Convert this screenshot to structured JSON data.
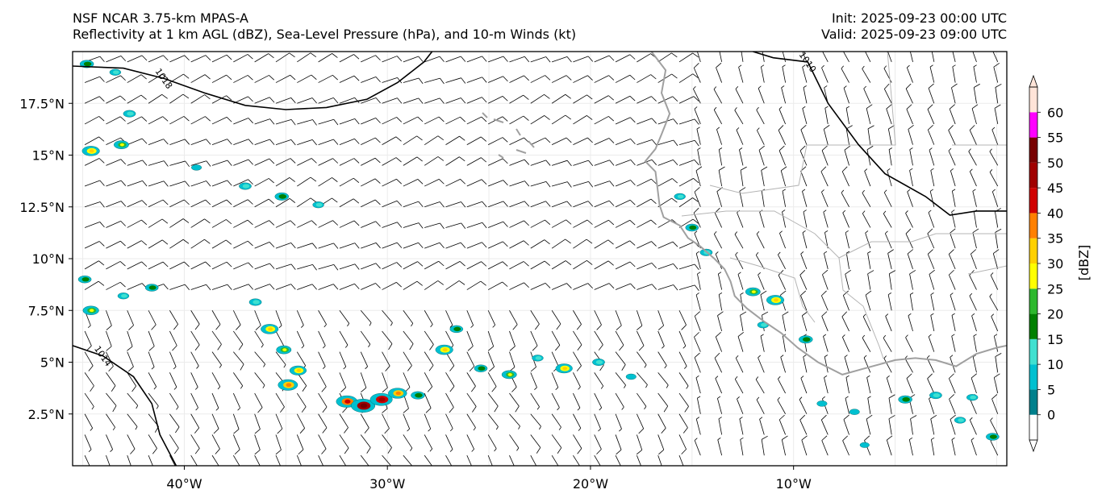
{
  "header": {
    "left_line1": "NSF NCAR 3.75-km MPAS-A",
    "left_line2": "Reflectivity at 1 km AGL (dBZ), Sea-Level Pressure (hPa), and 10-m Winds (kt)",
    "right_line1": "Init: 2025-09-23 00:00 UTC",
    "right_line2": "Valid: 2025-09-23 09:00 UTC"
  },
  "map": {
    "lon_range": [
      -45.5,
      0.5
    ],
    "lat_range": [
      0.0,
      20.0
    ],
    "lon_ticks": [
      {
        "value": -40,
        "label": "40°W"
      },
      {
        "value": -30,
        "label": "30°W"
      },
      {
        "value": -20,
        "label": "20°W"
      },
      {
        "value": -10,
        "label": "10°W"
      }
    ],
    "lat_ticks": [
      {
        "value": 2.5,
        "label": "2.5°N"
      },
      {
        "value": 5,
        "label": "5°N"
      },
      {
        "value": 7.5,
        "label": "7.5°N"
      },
      {
        "value": 10,
        "label": "10°N"
      },
      {
        "value": 12.5,
        "label": "12.5°N"
      },
      {
        "value": 15,
        "label": "15°N"
      },
      {
        "value": 17.5,
        "label": "17.5°N"
      }
    ],
    "isobars": [
      {
        "value": "1018",
        "label": "1018",
        "points": [
          [
            -45.5,
            19.3
          ],
          [
            -43,
            19.2
          ],
          [
            -41,
            18.7
          ],
          [
            -39,
            18.0
          ],
          [
            -37,
            17.4
          ],
          [
            -35,
            17.2
          ],
          [
            -33,
            17.3
          ],
          [
            -31,
            17.7
          ],
          [
            -29.5,
            18.5
          ],
          [
            -28.2,
            19.5
          ],
          [
            -27.8,
            20.0
          ]
        ]
      },
      {
        "value": "1014",
        "label": "1014",
        "points": [
          [
            -45.5,
            5.8
          ],
          [
            -44,
            5.3
          ],
          [
            -42.5,
            4.3
          ],
          [
            -41.6,
            3.0
          ],
          [
            -41.2,
            1.5
          ],
          [
            -40.4,
            0.0
          ]
        ]
      },
      {
        "value": "1010",
        "label": "1010",
        "points": [
          [
            -12.0,
            20.0
          ],
          [
            -11.0,
            19.7
          ],
          [
            -9.3,
            19.5
          ],
          [
            -8.3,
            17.5
          ],
          [
            -6.8,
            15.5
          ],
          [
            -5.5,
            14.1
          ],
          [
            -3.5,
            13.0
          ],
          [
            -2.3,
            12.1
          ],
          [
            -1.0,
            12.3
          ],
          [
            0.5,
            12.3
          ]
        ]
      }
    ],
    "coastline": [
      [
        -17.0,
        20.0
      ],
      [
        -16.3,
        19.1
      ],
      [
        -16.5,
        18.0
      ],
      [
        -16.1,
        17.0
      ],
      [
        -16.5,
        16.0
      ],
      [
        -16.8,
        15.3
      ],
      [
        -17.3,
        14.7
      ],
      [
        -16.8,
        14.2
      ],
      [
        -16.7,
        13.4
      ],
      [
        -16.6,
        12.6
      ],
      [
        -16.4,
        12.0
      ],
      [
        -15.6,
        11.6
      ],
      [
        -15.2,
        11.0
      ],
      [
        -14.6,
        10.6
      ],
      [
        -13.9,
        10.0
      ],
      [
        -13.4,
        9.5
      ],
      [
        -13.1,
        8.9
      ],
      [
        -12.9,
        8.2
      ],
      [
        -12.3,
        7.6
      ],
      [
        -11.5,
        7.0
      ],
      [
        -10.6,
        6.4
      ],
      [
        -9.8,
        5.7
      ],
      [
        -8.8,
        5.0
      ],
      [
        -7.6,
        4.4
      ],
      [
        -6.5,
        4.7
      ],
      [
        -5.0,
        5.1
      ],
      [
        -4.0,
        5.2
      ],
      [
        -3.0,
        5.1
      ],
      [
        -2.0,
        4.8
      ],
      [
        -1.0,
        5.4
      ],
      [
        0.0,
        5.7
      ],
      [
        0.5,
        5.8
      ]
    ]
  },
  "colorbar": {
    "label": "[dBZ]",
    "levels": [
      {
        "value": "0",
        "color": "#ffffff"
      },
      {
        "value": "5",
        "color": "#00808c"
      },
      {
        "value": "10",
        "color": "#00c0d0"
      },
      {
        "value": "15",
        "color": "#40e0d0"
      },
      {
        "value": "20",
        "color": "#008000"
      },
      {
        "value": "25",
        "color": "#2db82d"
      },
      {
        "value": "30",
        "color": "#ffff00"
      },
      {
        "value": "35",
        "color": "#ffd000"
      },
      {
        "value": "40",
        "color": "#ff8000"
      },
      {
        "value": "45",
        "color": "#d00000"
      },
      {
        "value": "50",
        "color": "#a00000"
      },
      {
        "value": "55",
        "color": "#780000"
      },
      {
        "value": "60",
        "color": "#ff00ff"
      }
    ],
    "top_color": "#ffe4d8"
  },
  "reflectivity_cells": [
    {
      "lon": -44.8,
      "lat": 19.4,
      "dbz": 22
    },
    {
      "lon": -43.4,
      "lat": 19.0,
      "dbz": 15
    },
    {
      "lon": -42.7,
      "lat": 17.0,
      "dbz": 18
    },
    {
      "lon": -43.1,
      "lat": 15.5,
      "dbz": 25
    },
    {
      "lon": -44.6,
      "lat": 15.2,
      "dbz": 32
    },
    {
      "lon": -39.4,
      "lat": 14.4,
      "dbz": 12
    },
    {
      "lon": -37.0,
      "lat": 13.5,
      "dbz": 18
    },
    {
      "lon": -35.2,
      "lat": 13.0,
      "dbz": 22
    },
    {
      "lon": -33.4,
      "lat": 12.6,
      "dbz": 15
    },
    {
      "lon": -44.9,
      "lat": 9.0,
      "dbz": 20
    },
    {
      "lon": -44.6,
      "lat": 7.5,
      "dbz": 28
    },
    {
      "lon": -43.0,
      "lat": 8.2,
      "dbz": 15
    },
    {
      "lon": -41.6,
      "lat": 8.6,
      "dbz": 20
    },
    {
      "lon": -36.5,
      "lat": 7.9,
      "dbz": 18
    },
    {
      "lon": -35.8,
      "lat": 6.6,
      "dbz": 32
    },
    {
      "lon": -35.1,
      "lat": 5.6,
      "dbz": 25
    },
    {
      "lon": -34.4,
      "lat": 4.6,
      "dbz": 30
    },
    {
      "lon": -34.9,
      "lat": 3.9,
      "dbz": 38
    },
    {
      "lon": -32.0,
      "lat": 3.1,
      "dbz": 42
    },
    {
      "lon": -31.2,
      "lat": 2.9,
      "dbz": 50
    },
    {
      "lon": -30.3,
      "lat": 3.2,
      "dbz": 45
    },
    {
      "lon": -29.5,
      "lat": 3.5,
      "dbz": 35
    },
    {
      "lon": -28.5,
      "lat": 3.4,
      "dbz": 22
    },
    {
      "lon": -27.2,
      "lat": 5.6,
      "dbz": 32
    },
    {
      "lon": -26.6,
      "lat": 6.6,
      "dbz": 20
    },
    {
      "lon": -25.4,
      "lat": 4.7,
      "dbz": 20
    },
    {
      "lon": -24.0,
      "lat": 4.4,
      "dbz": 25
    },
    {
      "lon": -22.6,
      "lat": 5.2,
      "dbz": 15
    },
    {
      "lon": -21.3,
      "lat": 4.7,
      "dbz": 30
    },
    {
      "lon": -19.6,
      "lat": 5.0,
      "dbz": 18
    },
    {
      "lon": -18.0,
      "lat": 4.3,
      "dbz": 12
    },
    {
      "lon": -15.6,
      "lat": 13.0,
      "dbz": 15
    },
    {
      "lon": -15.0,
      "lat": 11.5,
      "dbz": 20
    },
    {
      "lon": -14.3,
      "lat": 10.3,
      "dbz": 18
    },
    {
      "lon": -12.0,
      "lat": 8.4,
      "dbz": 25
    },
    {
      "lon": -10.9,
      "lat": 8.0,
      "dbz": 32
    },
    {
      "lon": -11.5,
      "lat": 6.8,
      "dbz": 15
    },
    {
      "lon": -9.4,
      "lat": 6.1,
      "dbz": 22
    },
    {
      "lon": -4.5,
      "lat": 3.2,
      "dbz": 22
    },
    {
      "lon": -3.0,
      "lat": 3.4,
      "dbz": 18
    },
    {
      "lon": -1.2,
      "lat": 3.3,
      "dbz": 15
    },
    {
      "lon": -0.2,
      "lat": 1.4,
      "dbz": 20
    },
    {
      "lon": -7.0,
      "lat": 2.6,
      "dbz": 12
    },
    {
      "lon": -8.6,
      "lat": 3.0,
      "dbz": 12
    },
    {
      "lon": -1.8,
      "lat": 2.2,
      "dbz": 15
    },
    {
      "lon": -6.5,
      "lat": 1.0,
      "dbz": 10
    }
  ]
}
